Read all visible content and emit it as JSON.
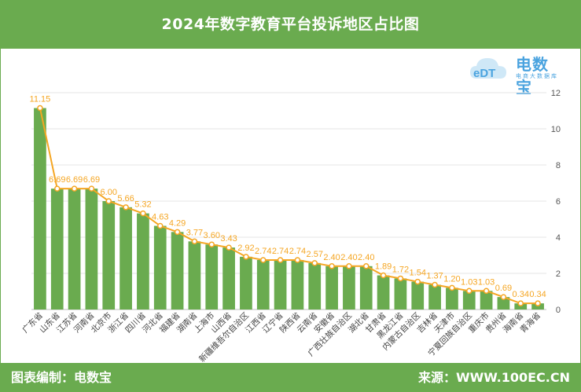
{
  "header": {
    "title": "2024年数字教育平台投诉地区占比图"
  },
  "footer": {
    "left": "图表编制：电数宝",
    "right": "来源：WWW.100EC.CN"
  },
  "logo": {
    "name": "电数宝",
    "subtitle": "电商大数据库",
    "mark": "eDT",
    "icon": "cloud-logo-icon"
  },
  "colors": {
    "bar": "#6aab4f",
    "line": "#f5a623",
    "label": "#f5a623",
    "header": "#6aab4f"
  },
  "chart_data": {
    "type": "bar",
    "title": "2024年数字教育平台投诉地区占比图",
    "xlabel": "",
    "ylabel": "",
    "ylim": [
      0,
      12
    ],
    "yticks": [
      0,
      2,
      4,
      6,
      8,
      10,
      12
    ],
    "grid": true,
    "legend": "none",
    "categories": [
      "广东省",
      "山东省",
      "江苏省",
      "河南省",
      "北京市",
      "浙江省",
      "四川省",
      "河北省",
      "福建省",
      "湖南省",
      "上海市",
      "山西省",
      "新疆维吾尔自治区",
      "江西省",
      "辽宁省",
      "陕西省",
      "云南省",
      "安徽省",
      "广西壮族自治区",
      "湖北省",
      "甘肃省",
      "黑龙江省",
      "内蒙古自治区",
      "吉林省",
      "天津市",
      "宁夏回族自治区",
      "重庆市",
      "贵州省",
      "海南省",
      "青海省"
    ],
    "values": [
      11.15,
      6.69,
      6.69,
      6.69,
      6.0,
      5.66,
      5.32,
      4.63,
      4.29,
      3.77,
      3.6,
      3.43,
      2.92,
      2.74,
      2.74,
      2.74,
      2.57,
      2.4,
      2.4,
      2.4,
      1.89,
      1.72,
      1.54,
      1.37,
      1.2,
      1.03,
      1.03,
      0.69,
      0.34,
      0.34
    ],
    "labels": [
      "11.15",
      "6.69",
      "6.69",
      "6.69",
      "6.00",
      "5.66",
      "5.32",
      "4.63",
      "4.29",
      "3.77",
      "3.60",
      "3.43",
      "2.92",
      "2.74",
      "2.74",
      "2.74",
      "2.57",
      "2.40",
      "2.40",
      "2.40",
      "1.89",
      "1.72",
      "1.54",
      "1.37",
      "1.20",
      "1.03",
      "1.03",
      "0.69",
      "0.34",
      "0.34"
    ],
    "series": [
      {
        "type": "bar"
      },
      {
        "type": "line"
      }
    ]
  }
}
